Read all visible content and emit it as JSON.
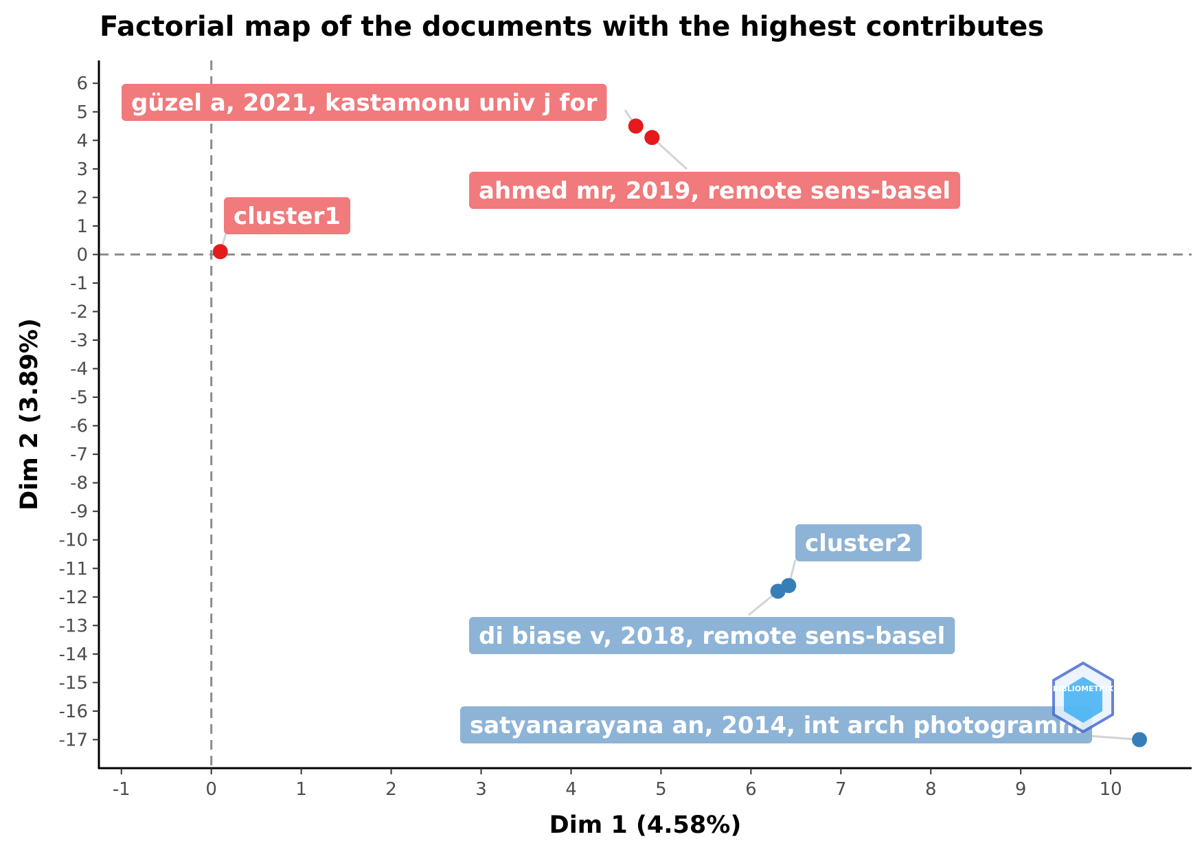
{
  "chart_data": {
    "type": "scatter",
    "title": "Factorial map of the documents with the highest contributes",
    "xlabel": "Dim 1 (4.58%)",
    "ylabel": "Dim 2 (3.89%)",
    "xlim": [
      -1.25,
      10.9
    ],
    "ylim": [
      -18.0,
      6.8
    ],
    "x_ticks": [
      -1,
      0,
      1,
      2,
      3,
      4,
      5,
      6,
      7,
      8,
      9,
      10
    ],
    "y_ticks": [
      6,
      5,
      4,
      3,
      2,
      1,
      0,
      -1,
      -2,
      -3,
      -4,
      -5,
      -6,
      -7,
      -8,
      -9,
      -10,
      -11,
      -12,
      -13,
      -14,
      -15,
      -16,
      -17
    ],
    "reference_lines": {
      "x": 0,
      "y": 0,
      "style": "dashed"
    },
    "grid": false,
    "legend": "none",
    "colors": {
      "cluster1_point": "#e41a1c",
      "cluster1_label": "#f07a7c",
      "cluster2_point": "#377eb8",
      "cluster2_label": "#8db3d6",
      "reference_line": "#8c8c8c"
    },
    "series": [
      {
        "cluster": "cluster1",
        "points": [
          {
            "x": 0.1,
            "y": 0.1,
            "label": "cluster1"
          },
          {
            "x": 4.72,
            "y": 4.5,
            "label": "güzel a, 2021, kastamonu univ j for"
          },
          {
            "x": 4.9,
            "y": 4.1,
            "label": "ahmed mr, 2019, remote sens-basel"
          }
        ]
      },
      {
        "cluster": "cluster2",
        "points": [
          {
            "x": 6.42,
            "y": -11.6,
            "label": "cluster2"
          },
          {
            "x": 6.3,
            "y": -11.8,
            "label": "di biase v, 2018, remote sens-basel"
          },
          {
            "x": 10.32,
            "y": -17.0,
            "label": "satyanarayana an, 2014, int arch photogramm"
          }
        ]
      }
    ],
    "watermark": "BIBLIOMETRIX"
  }
}
